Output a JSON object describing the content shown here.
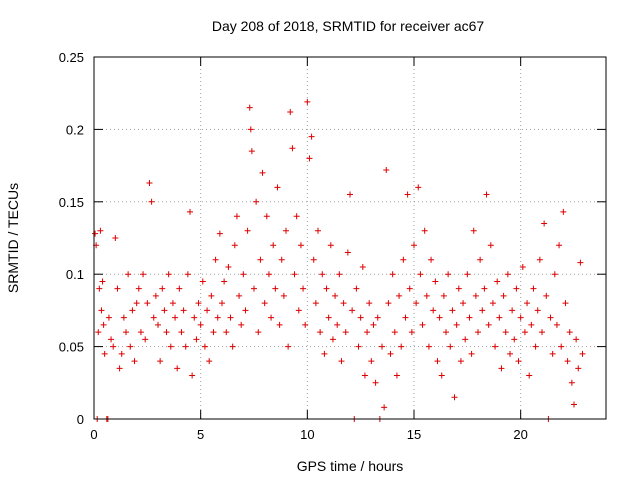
{
  "chart_data": {
    "type": "scatter",
    "title": "Day 208 of 2018, SRMTID for receiver ac67",
    "xlabel": "GPS time / hours",
    "ylabel": "SRMTID / TECUs",
    "xlim": [
      0,
      24
    ],
    "ylim": [
      0,
      0.25
    ],
    "grid": true,
    "marker": "+",
    "color": "#dd0000",
    "xticks": [
      0,
      5,
      10,
      15,
      20
    ],
    "xtick_labels": [
      "0",
      "5",
      "10",
      "15",
      "20"
    ],
    "yticks": [
      0,
      0.05,
      0.1,
      0.15,
      0.2,
      0.25
    ],
    "ytick_labels": [
      "0",
      "0.05",
      "0.1",
      "0.15",
      "0.2",
      "0.25"
    ],
    "series": [
      {
        "name": "SRMTID",
        "points": [
          [
            0.05,
            0.128
          ],
          [
            0.1,
            0.12
          ],
          [
            0.15,
            0.0
          ],
          [
            0.2,
            0.06
          ],
          [
            0.25,
            0.09
          ],
          [
            0.3,
            0.13
          ],
          [
            0.35,
            0.075
          ],
          [
            0.4,
            0.095
          ],
          [
            0.45,
            0.065
          ],
          [
            0.5,
            0.045
          ],
          [
            0.6,
            0.0
          ],
          [
            0.65,
            0.0
          ],
          [
            0.7,
            0.07
          ],
          [
            0.8,
            0.055
          ],
          [
            0.9,
            0.05
          ],
          [
            1.0,
            0.125
          ],
          [
            1.1,
            0.09
          ],
          [
            1.2,
            0.035
          ],
          [
            1.3,
            0.045
          ],
          [
            1.4,
            0.07
          ],
          [
            1.5,
            0.06
          ],
          [
            1.6,
            0.1
          ],
          [
            1.7,
            0.05
          ],
          [
            1.8,
            0.075
          ],
          [
            1.9,
            0.04
          ],
          [
            2.0,
            0.08
          ],
          [
            2.1,
            0.09
          ],
          [
            2.2,
            0.06
          ],
          [
            2.3,
            0.1
          ],
          [
            2.4,
            0.055
          ],
          [
            2.5,
            0.08
          ],
          [
            2.6,
            0.163
          ],
          [
            2.7,
            0.15
          ],
          [
            2.8,
            0.07
          ],
          [
            2.9,
            0.085
          ],
          [
            3.0,
            0.065
          ],
          [
            3.1,
            0.04
          ],
          [
            3.2,
            0.09
          ],
          [
            3.3,
            0.075
          ],
          [
            3.4,
            0.06
          ],
          [
            3.5,
            0.1
          ],
          [
            3.6,
            0.05
          ],
          [
            3.7,
            0.08
          ],
          [
            3.8,
            0.07
          ],
          [
            3.9,
            0.035
          ],
          [
            4.0,
            0.09
          ],
          [
            4.1,
            0.06
          ],
          [
            4.2,
            0.075
          ],
          [
            4.3,
            0.05
          ],
          [
            4.4,
            0.1
          ],
          [
            4.5,
            0.143
          ],
          [
            4.6,
            0.03
          ],
          [
            4.7,
            0.07
          ],
          [
            4.8,
            0.055
          ],
          [
            4.9,
            0.08
          ],
          [
            5.0,
            0.065
          ],
          [
            5.1,
            0.095
          ],
          [
            5.2,
            0.05
          ],
          [
            5.3,
            0.075
          ],
          [
            5.4,
            0.04
          ],
          [
            5.5,
            0.085
          ],
          [
            5.6,
            0.06
          ],
          [
            5.7,
            0.11
          ],
          [
            5.8,
            0.07
          ],
          [
            5.9,
            0.128
          ],
          [
            6.0,
            0.08
          ],
          [
            6.1,
            0.095
          ],
          [
            6.2,
            0.06
          ],
          [
            6.3,
            0.105
          ],
          [
            6.4,
            0.07
          ],
          [
            6.5,
            0.05
          ],
          [
            6.6,
            0.12
          ],
          [
            6.7,
            0.14
          ],
          [
            6.8,
            0.085
          ],
          [
            6.9,
            0.065
          ],
          [
            7.0,
            0.1
          ],
          [
            7.1,
            0.075
          ],
          [
            7.2,
            0.13
          ],
          [
            7.3,
            0.215
          ],
          [
            7.35,
            0.2
          ],
          [
            7.4,
            0.185
          ],
          [
            7.5,
            0.09
          ],
          [
            7.6,
            0.15
          ],
          [
            7.7,
            0.06
          ],
          [
            7.8,
            0.11
          ],
          [
            7.9,
            0.17
          ],
          [
            8.0,
            0.08
          ],
          [
            8.1,
            0.14
          ],
          [
            8.2,
            0.1
          ],
          [
            8.3,
            0.07
          ],
          [
            8.4,
            0.12
          ],
          [
            8.5,
            0.09
          ],
          [
            8.6,
            0.16
          ],
          [
            8.7,
            0.065
          ],
          [
            8.8,
            0.11
          ],
          [
            8.9,
            0.085
          ],
          [
            9.0,
            0.13
          ],
          [
            9.1,
            0.05
          ],
          [
            9.2,
            0.212
          ],
          [
            9.3,
            0.187
          ],
          [
            9.4,
            0.1
          ],
          [
            9.5,
            0.14
          ],
          [
            9.6,
            0.075
          ],
          [
            9.7,
            0.12
          ],
          [
            9.8,
            0.09
          ],
          [
            9.9,
            0.065
          ],
          [
            10.0,
            0.219
          ],
          [
            10.1,
            0.18
          ],
          [
            10.2,
            0.195
          ],
          [
            10.3,
            0.11
          ],
          [
            10.4,
            0.08
          ],
          [
            10.5,
            0.13
          ],
          [
            10.6,
            0.06
          ],
          [
            10.7,
            0.1
          ],
          [
            10.8,
            0.045
          ],
          [
            10.9,
            0.09
          ],
          [
            11.0,
            0.07
          ],
          [
            11.1,
            0.12
          ],
          [
            11.2,
            0.055
          ],
          [
            11.3,
            0.085
          ],
          [
            11.4,
            0.065
          ],
          [
            11.5,
            0.1
          ],
          [
            11.6,
            0.04
          ],
          [
            11.7,
            0.08
          ],
          [
            11.8,
            0.06
          ],
          [
            11.9,
            0.115
          ],
          [
            12.0,
            0.155
          ],
          [
            12.1,
            0.075
          ],
          [
            12.2,
            0.0
          ],
          [
            12.3,
            0.09
          ],
          [
            12.4,
            0.05
          ],
          [
            12.5,
            0.07
          ],
          [
            12.6,
            0.105
          ],
          [
            12.7,
            0.03
          ],
          [
            12.8,
            0.06
          ],
          [
            12.9,
            0.08
          ],
          [
            13.0,
            0.04
          ],
          [
            13.1,
            0.065
          ],
          [
            13.2,
            0.025
          ],
          [
            13.3,
            0.07
          ],
          [
            13.4,
            0.0
          ],
          [
            13.5,
            0.05
          ],
          [
            13.6,
            0.008
          ],
          [
            13.7,
            0.172
          ],
          [
            13.8,
            0.08
          ],
          [
            13.9,
            0.045
          ],
          [
            14.0,
            0.1
          ],
          [
            14.1,
            0.06
          ],
          [
            14.2,
            0.03
          ],
          [
            14.3,
            0.085
          ],
          [
            14.4,
            0.05
          ],
          [
            14.5,
            0.11
          ],
          [
            14.6,
            0.07
          ],
          [
            14.7,
            0.155
          ],
          [
            14.8,
            0.09
          ],
          [
            14.9,
            0.06
          ],
          [
            15.0,
            0.12
          ],
          [
            15.1,
            0.08
          ],
          [
            15.2,
            0.16
          ],
          [
            15.3,
            0.1
          ],
          [
            15.4,
            0.065
          ],
          [
            15.5,
            0.13
          ],
          [
            15.6,
            0.085
          ],
          [
            15.7,
            0.05
          ],
          [
            15.8,
            0.11
          ],
          [
            15.9,
            0.075
          ],
          [
            16.0,
            0.095
          ],
          [
            16.1,
            0.04
          ],
          [
            16.2,
            0.07
          ],
          [
            16.3,
            0.03
          ],
          [
            16.4,
            0.085
          ],
          [
            16.5,
            0.06
          ],
          [
            16.6,
            0.1
          ],
          [
            16.7,
            0.05
          ],
          [
            16.8,
            0.075
          ],
          [
            16.9,
            0.015
          ],
          [
            17.0,
            0.065
          ],
          [
            17.1,
            0.09
          ],
          [
            17.2,
            0.04
          ],
          [
            17.3,
            0.08
          ],
          [
            17.4,
            0.055
          ],
          [
            17.5,
            0.1
          ],
          [
            17.6,
            0.07
          ],
          [
            17.7,
            0.045
          ],
          [
            17.8,
            0.13
          ],
          [
            17.9,
            0.085
          ],
          [
            18.0,
            0.06
          ],
          [
            18.1,
            0.11
          ],
          [
            18.2,
            0.075
          ],
          [
            18.3,
            0.09
          ],
          [
            18.4,
            0.155
          ],
          [
            18.5,
            0.065
          ],
          [
            18.6,
            0.12
          ],
          [
            18.7,
            0.08
          ],
          [
            18.8,
            0.05
          ],
          [
            18.9,
            0.095
          ],
          [
            19.0,
            0.07
          ],
          [
            19.1,
            0.035
          ],
          [
            19.2,
            0.085
          ],
          [
            19.3,
            0.06
          ],
          [
            19.4,
            0.1
          ],
          [
            19.5,
            0.045
          ],
          [
            19.6,
            0.075
          ],
          [
            19.7,
            0.055
          ],
          [
            19.8,
            0.09
          ],
          [
            19.9,
            0.04
          ],
          [
            20.0,
            0.07
          ],
          [
            20.1,
            0.105
          ],
          [
            20.2,
            0.06
          ],
          [
            20.3,
            0.08
          ],
          [
            20.4,
            0.03
          ],
          [
            20.5,
            0.065
          ],
          [
            20.6,
            0.09
          ],
          [
            20.7,
            0.05
          ],
          [
            20.8,
            0.075
          ],
          [
            20.9,
            0.11
          ],
          [
            21.0,
            0.06
          ],
          [
            21.1,
            0.135
          ],
          [
            21.2,
            0.085
          ],
          [
            21.3,
            0.0
          ],
          [
            21.4,
            0.07
          ],
          [
            21.5,
            0.045
          ],
          [
            21.6,
            0.1
          ],
          [
            21.7,
            0.065
          ],
          [
            21.8,
            0.12
          ],
          [
            21.9,
            0.05
          ],
          [
            22.0,
            0.143
          ],
          [
            22.1,
            0.08
          ],
          [
            22.2,
            0.04
          ],
          [
            22.3,
            0.06
          ],
          [
            22.4,
            0.025
          ],
          [
            22.5,
            0.01
          ],
          [
            22.6,
            0.055
          ],
          [
            22.7,
            0.035
          ],
          [
            22.8,
            0.108
          ],
          [
            22.9,
            0.045
          ]
        ]
      }
    ]
  }
}
